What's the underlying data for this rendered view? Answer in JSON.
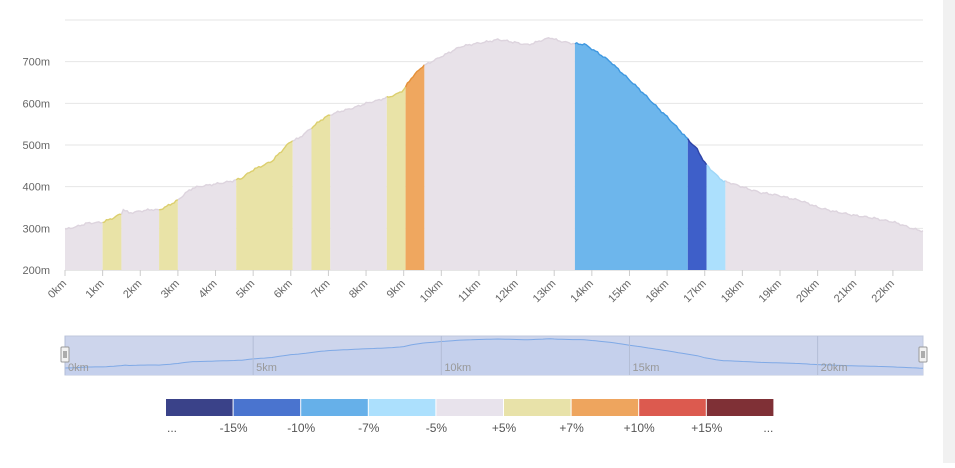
{
  "chart_data": {
    "type": "area",
    "title": "",
    "xlabel": "",
    "ylabel": "",
    "xlim": [
      0,
      22.8
    ],
    "ylim": [
      200,
      800
    ],
    "x_tick_labels": [
      "0km",
      "1km",
      "2km",
      "3km",
      "4km",
      "5km",
      "6km",
      "7km",
      "8km",
      "9km",
      "10km",
      "11km",
      "12km",
      "13km",
      "14km",
      "15km",
      "16km",
      "17km",
      "18km",
      "19km",
      "20km",
      "21km",
      "22km"
    ],
    "y_tick_labels": [
      "200m",
      "300m",
      "400m",
      "500m",
      "600m",
      "700m"
    ],
    "grid": true,
    "profile": [
      [
        0.0,
        297
      ],
      [
        0.3,
        303
      ],
      [
        0.6,
        313
      ],
      [
        1.0,
        315
      ],
      [
        1.3,
        325
      ],
      [
        1.5,
        335
      ],
      [
        1.55,
        345
      ],
      [
        1.7,
        337
      ],
      [
        2.0,
        342
      ],
      [
        2.3,
        345
      ],
      [
        2.5,
        343
      ],
      [
        2.7,
        352
      ],
      [
        3.0,
        368
      ],
      [
        3.2,
        385
      ],
      [
        3.4,
        397
      ],
      [
        3.8,
        403
      ],
      [
        4.2,
        410
      ],
      [
        4.5,
        415
      ],
      [
        4.7,
        420
      ],
      [
        5.0,
        440
      ],
      [
        5.5,
        462
      ],
      [
        6.0,
        508
      ],
      [
        6.2,
        515
      ],
      [
        6.5,
        538
      ],
      [
        6.8,
        560
      ],
      [
        7.0,
        570
      ],
      [
        7.3,
        580
      ],
      [
        7.6,
        588
      ],
      [
        8.0,
        600
      ],
      [
        8.3,
        606
      ],
      [
        8.6,
        615
      ],
      [
        8.8,
        622
      ],
      [
        9.0,
        633
      ],
      [
        9.2,
        660
      ],
      [
        9.5,
        688
      ],
      [
        10.0,
        713
      ],
      [
        10.5,
        735
      ],
      [
        11.0,
        745
      ],
      [
        11.5,
        753
      ],
      [
        11.8,
        748
      ],
      [
        12.0,
        745
      ],
      [
        12.3,
        741
      ],
      [
        12.7,
        752
      ],
      [
        12.9,
        757
      ],
      [
        13.1,
        750
      ],
      [
        13.5,
        744
      ],
      [
        13.8,
        742
      ],
      [
        14.0,
        730
      ],
      [
        14.5,
        700
      ],
      [
        15.0,
        656
      ],
      [
        15.5,
        612
      ],
      [
        16.0,
        568
      ],
      [
        16.5,
        518
      ],
      [
        16.8,
        490
      ],
      [
        17.0,
        458
      ],
      [
        17.3,
        428
      ],
      [
        17.5,
        412
      ],
      [
        17.7,
        408
      ],
      [
        18.0,
        400
      ],
      [
        18.5,
        385
      ],
      [
        19.0,
        378
      ],
      [
        19.5,
        368
      ],
      [
        20.0,
        350
      ],
      [
        20.5,
        340
      ],
      [
        21.0,
        330
      ],
      [
        21.5,
        325
      ],
      [
        22.0,
        315
      ],
      [
        22.5,
        300
      ],
      [
        22.8,
        294
      ]
    ],
    "bands": [
      {
        "from": 0.0,
        "to": 1.0,
        "grade": "-5% to +5%"
      },
      {
        "from": 1.0,
        "to": 1.5,
        "grade": "+5% to +7%"
      },
      {
        "from": 1.5,
        "to": 2.5,
        "grade": "-5% to +5%"
      },
      {
        "from": 2.5,
        "to": 3.0,
        "grade": "+5% to +7%"
      },
      {
        "from": 3.0,
        "to": 4.55,
        "grade": "-5% to +5%"
      },
      {
        "from": 4.55,
        "to": 6.05,
        "grade": "+5% to +7%"
      },
      {
        "from": 6.05,
        "to": 6.55,
        "grade": "-5% to +5%"
      },
      {
        "from": 6.55,
        "to": 7.05,
        "grade": "+5% to +7%"
      },
      {
        "from": 7.05,
        "to": 8.55,
        "grade": "-5% to +5%"
      },
      {
        "from": 8.55,
        "to": 9.05,
        "grade": "+5% to +7%"
      },
      {
        "from": 9.05,
        "to": 9.55,
        "grade": "+7% to +10%"
      },
      {
        "from": 9.55,
        "to": 13.55,
        "grade": "-5% to +5%"
      },
      {
        "from": 13.55,
        "to": 16.55,
        "grade": "-10% to -7%"
      },
      {
        "from": 16.55,
        "to": 17.05,
        "grade": "-15% to -10%"
      },
      {
        "from": 17.05,
        "to": 17.55,
        "grade": "-7% to -5%"
      },
      {
        "from": 17.55,
        "to": 22.8,
        "grade": "-5% to +5%"
      }
    ],
    "navigator": {
      "range": [
        0,
        22.8
      ],
      "tick_labels": [
        "0km",
        "5km",
        "10km",
        "15km",
        "20km"
      ]
    },
    "legend": {
      "placement": "bottom",
      "labels": [
        "...",
        "-15%",
        "-10%",
        "-7%",
        "-5%",
        "+5%",
        "+7%",
        "+10%",
        "+15%",
        "..."
      ],
      "colors": [
        "#3a4289",
        "#4a74cf",
        "#66b0e9",
        "#ace0fd",
        "#e8e3ec",
        "#e8e2a9",
        "#eea55e",
        "#dc5a4f",
        "#7f3036"
      ]
    },
    "colors": {
      "-15% to -10%": "#3e5fc9",
      "-10% to -7%": "#6db6ec",
      "-7% to -5%": "#ace0fd",
      "-5% to +5%": "#e8e2e9",
      "+5% to +7%": "#e9e3a7",
      "+7% to +10%": "#efa75f"
    },
    "line_colors": {
      "-15% to -10%": "#2f45a8",
      "-10% to -7%": "#3f98e0",
      "-7% to -5%": "#9fd7f8",
      "-5% to +5%": "#ddd4de",
      "+5% to +7%": "#dccf6e",
      "+7% to +10%": "#e59038"
    }
  }
}
